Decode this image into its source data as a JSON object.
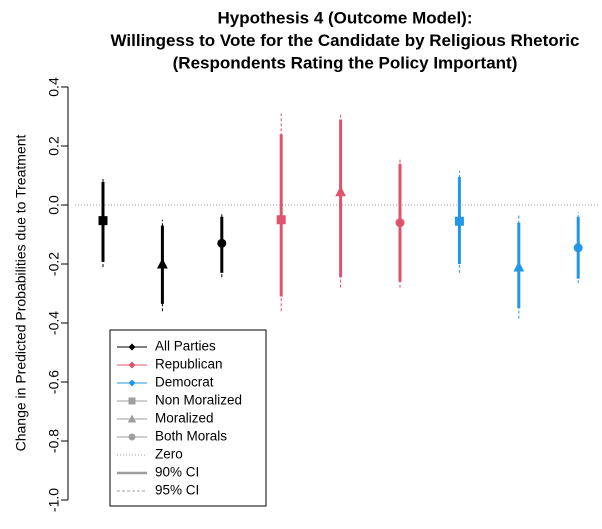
{
  "chart_data": {
    "type": "errorbar",
    "title": [
      "Hypothesis 4 (Outcome Model):",
      "Willingess to Vote for the Candidate by Religious Rhetoric",
      "(Respondents Rating the Policy Important)"
    ],
    "ylabel": "Change in Predicted Probabilities due to Treatment",
    "ylim": [
      -1.0,
      0.4
    ],
    "yticks": [
      {
        "value": -1.0,
        "label": "-1.0"
      },
      -0.8,
      -0.6,
      -0.4,
      -0.2,
      {
        "value": 0,
        "label": "0.0"
      },
      0.2,
      0.4
    ],
    "hline": 0,
    "markers": [
      "square",
      "triangle",
      "circle"
    ],
    "series": [
      {
        "color": "#000000",
        "values": [
          -0.053,
          -0.2,
          -0.13
        ],
        "ci90_low": [
          -0.193,
          -0.335,
          -0.23
        ],
        "ci90_high": [
          0.078,
          -0.07,
          -0.04
        ],
        "ci95_low": [
          -0.21,
          -0.36,
          -0.245
        ],
        "ci95_high": [
          0.095,
          -0.05,
          -0.025
        ]
      },
      {
        "color": "#DF536B",
        "values": [
          -0.05,
          0.045,
          -0.06
        ],
        "ci90_low": [
          -0.31,
          -0.245,
          -0.26
        ],
        "ci90_high": [
          0.24,
          0.29,
          0.14
        ],
        "ci95_low": [
          -0.36,
          -0.28,
          -0.28
        ],
        "ci95_high": [
          0.31,
          0.31,
          0.16
        ]
      },
      {
        "color": "#2297E6",
        "values": [
          -0.055,
          -0.21,
          -0.145
        ],
        "ci90_low": [
          -0.2,
          -0.35,
          -0.25
        ],
        "ci90_high": [
          0.095,
          -0.06,
          -0.04
        ],
        "ci95_low": [
          -0.23,
          -0.385,
          -0.265
        ],
        "ci95_high": [
          0.115,
          -0.035,
          -0.025
        ]
      }
    ],
    "legend_position": "bottom-left",
    "legend": [
      {
        "label": "All Parties",
        "color": "#000000",
        "marker": "diamond",
        "line": "solid"
      },
      {
        "label": "Republican",
        "color": "#DF536B",
        "marker": "diamond",
        "line": "solid"
      },
      {
        "label": "Democrat",
        "color": "#2297E6",
        "marker": "diamond",
        "line": "solid"
      },
      {
        "label": "Non Moralized",
        "color": "#9E9E9E",
        "marker": "square",
        "line": "solid"
      },
      {
        "label": "Moralized",
        "color": "#9E9E9E",
        "marker": "triangle",
        "line": "solid"
      },
      {
        "label": "Both Morals",
        "color": "#9E9E9E",
        "marker": "circle",
        "line": "solid"
      },
      {
        "label": "Zero",
        "color": "#9E9E9E",
        "marker": "none",
        "line": "dotted"
      },
      {
        "label": "90% CI",
        "color": "#9E9E9E",
        "marker": "none",
        "line": "thick"
      },
      {
        "label": "95% CI",
        "color": "#9E9E9E",
        "marker": "none",
        "line": "dashed"
      }
    ]
  }
}
